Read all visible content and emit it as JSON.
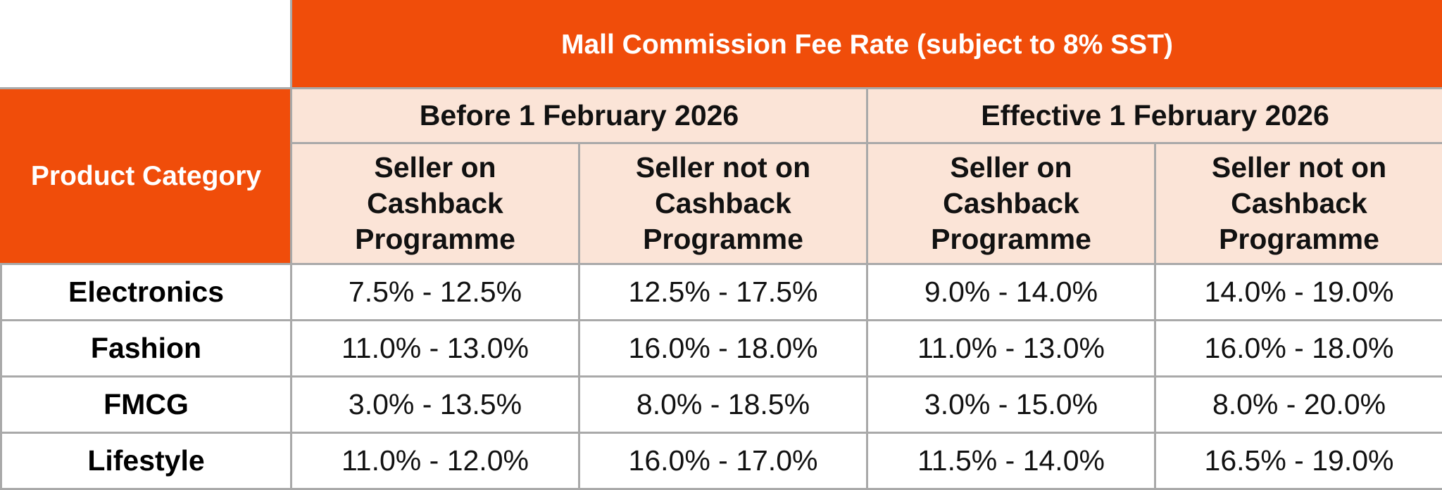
{
  "title": "Mall Commission Fee Rate (subject to 8% SST)",
  "category_header": "Product Category",
  "periods": [
    {
      "label": "Before 1 February 2026",
      "columns": [
        {
          "line1": "Seller on",
          "line2": "Cashback",
          "line3": "Programme"
        },
        {
          "line1": "Seller not on",
          "line2": "Cashback",
          "line3": "Programme"
        }
      ]
    },
    {
      "label": "Effective 1 February 2026",
      "columns": [
        {
          "line1": "Seller on",
          "line2": "Cashback",
          "line3": "Programme"
        },
        {
          "line1": "Seller not on",
          "line2": "Cashback",
          "line3": "Programme"
        }
      ]
    }
  ],
  "rows": [
    {
      "category": "Electronics",
      "rates": [
        "7.5% - 12.5%",
        "12.5% - 17.5%",
        "9.0% - 14.0%",
        "14.0% - 19.0%"
      ]
    },
    {
      "category": "Fashion",
      "rates": [
        "11.0% - 13.0%",
        "16.0% - 18.0%",
        "11.0% - 13.0%",
        "16.0% - 18.0%"
      ]
    },
    {
      "category": "FMCG",
      "rates": [
        "3.0% - 13.5%",
        "8.0% - 18.5%",
        "3.0% - 15.0%",
        "8.0% - 20.0%"
      ]
    },
    {
      "category": "Lifestyle",
      "rates": [
        "11.0% - 12.0%",
        "16.0% - 17.0%",
        "11.5% - 14.0%",
        "16.5% - 19.0%"
      ]
    }
  ],
  "colors": {
    "accent": "#f04d0a",
    "header_tint": "#fbe4d7",
    "border": "#a9a9a9"
  }
}
